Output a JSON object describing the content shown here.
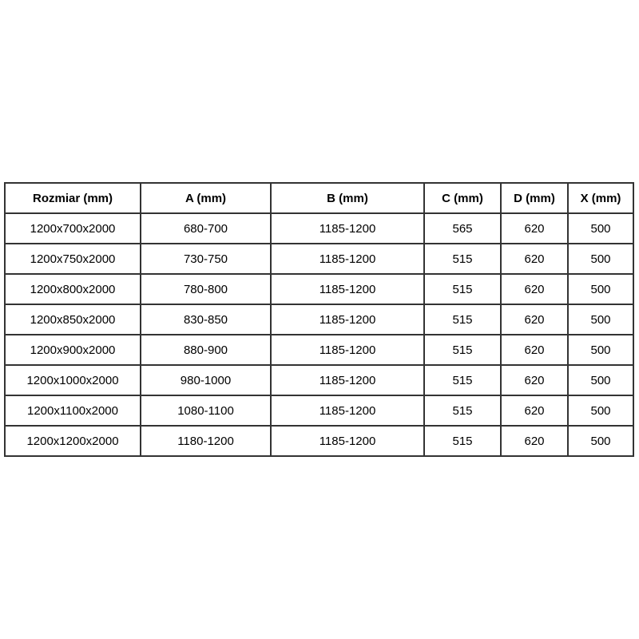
{
  "table": {
    "headers": [
      "Rozmiar (mm)",
      "A (mm)",
      "B (mm)",
      "C (mm)",
      "D (mm)",
      "X (mm)"
    ],
    "rows": [
      [
        "1200x700x2000",
        "680-700",
        "1185-1200",
        "565",
        "620",
        "500"
      ],
      [
        "1200x750x2000",
        "730-750",
        "1185-1200",
        "515",
        "620",
        "500"
      ],
      [
        "1200x800x2000",
        "780-800",
        "1185-1200",
        "515",
        "620",
        "500"
      ],
      [
        "1200x850x2000",
        "830-850",
        "1185-1200",
        "515",
        "620",
        "500"
      ],
      [
        "1200x900x2000",
        "880-900",
        "1185-1200",
        "515",
        "620",
        "500"
      ],
      [
        "1200x1000x2000",
        "980-1000",
        "1185-1200",
        "515",
        "620",
        "500"
      ],
      [
        "1200x1100x2000",
        "1080-1100",
        "1185-1200",
        "515",
        "620",
        "500"
      ],
      [
        "1200x1200x2000",
        "1180-1200",
        "1185-1200",
        "515",
        "620",
        "500"
      ]
    ],
    "colors": {
      "border": "#333333",
      "text": "#000000",
      "background": "#ffffff"
    }
  }
}
